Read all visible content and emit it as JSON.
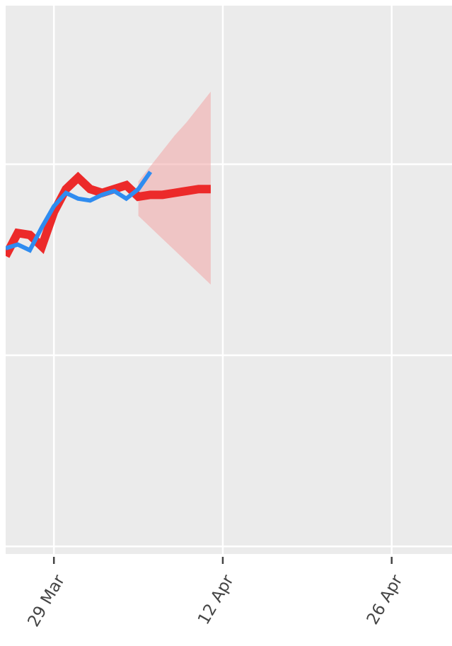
{
  "chart_data": {
    "type": "line",
    "x": [
      "25 Mar",
      "26 Mar",
      "27 Mar",
      "28 Mar",
      "29 Mar",
      "30 Mar",
      "31 Mar",
      "1 Apr",
      "2 Apr",
      "3 Apr",
      "4 Apr",
      "5 Apr",
      "6 Apr",
      "7 Apr",
      "8 Apr",
      "9 Apr",
      "10 Apr",
      "11 Apr"
    ],
    "series": [
      {
        "color": "#ec2a2a",
        "values": [
          1.52,
          1.64,
          1.63,
          1.57,
          1.75,
          1.87,
          1.93,
          1.87,
          1.85,
          1.87,
          1.89,
          1.83,
          1.84,
          1.84,
          1.85,
          1.86,
          1.87,
          1.87
        ]
      },
      {
        "color": "#2f8cf0",
        "values": [
          1.56,
          1.58,
          1.55,
          1.67,
          1.78,
          1.85,
          1.82,
          1.81,
          1.84,
          1.86,
          1.82,
          1.87,
          1.96,
          null,
          null,
          null,
          null,
          null
        ]
      }
    ],
    "band": {
      "color": "#f2a6a6",
      "upper": [
        null,
        null,
        null,
        null,
        null,
        null,
        null,
        null,
        null,
        null,
        null,
        1.91,
        1.99,
        2.07,
        2.15,
        2.22,
        2.3,
        2.38
      ],
      "lower": [
        null,
        null,
        null,
        null,
        null,
        null,
        null,
        null,
        null,
        null,
        null,
        1.73,
        1.67,
        1.61,
        1.55,
        1.49,
        1.43,
        1.37
      ]
    },
    "xlim": [
      "25 Mar",
      "1 May"
    ],
    "xticks": [
      "29 Mar",
      "12 Apr",
      "26 Apr"
    ],
    "ylim": [
      -0.04,
      2.83
    ],
    "ygrid": [
      0,
      1,
      2
    ],
    "grid": true
  }
}
